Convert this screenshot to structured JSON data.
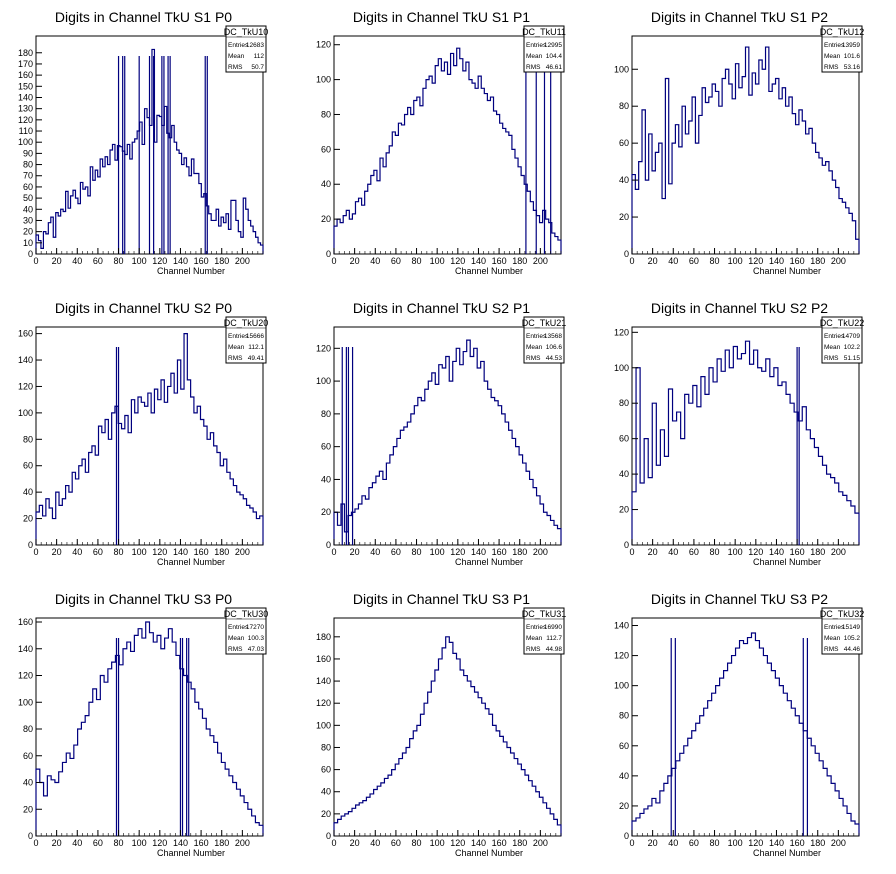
{
  "title": "Digits in Channel TkU S1 P0 ... S3 P2 (ROOT histogram canvas)",
  "style": {
    "line_color": "#00007f",
    "axis_color": "#000000",
    "background": "#ffffff"
  },
  "chart_data": [
    {
      "type": "histogram",
      "title": "Digits in Channel TkU S1 P0",
      "xlabel": "Channel Number",
      "ylabel": "",
      "xlim": [
        0,
        220
      ],
      "ylim": [
        0,
        195
      ],
      "xticks": [
        0,
        20,
        40,
        60,
        80,
        100,
        120,
        140,
        160,
        180,
        200
      ],
      "yticks": [
        0,
        10,
        20,
        30,
        40,
        50,
        60,
        70,
        80,
        90,
        100,
        110,
        120,
        130,
        140,
        150,
        160,
        170,
        180
      ],
      "stats": {
        "name": "DC_TkU10",
        "rows": [
          {
            "label": "Entries",
            "value": "12683"
          },
          {
            "label": "Mean",
            "value": "112"
          },
          {
            "label": "RMS",
            "value": "50.7"
          }
        ]
      },
      "bins_y": [
        17,
        12,
        5,
        20,
        18,
        28,
        33,
        15,
        37,
        34,
        40,
        38,
        56,
        41,
        52,
        57,
        50,
        45,
        64,
        58,
        60,
        52,
        78,
        66,
        75,
        69,
        85,
        78,
        87,
        80,
        93,
        98,
        84,
        97,
        96,
        92,
        89,
        98,
        85,
        100,
        103,
        110,
        118,
        98,
        130,
        122,
        115,
        183,
        100,
        124,
        123,
        115,
        132,
        108,
        104,
        115,
        100,
        93,
        90,
        80,
        86,
        78,
        70,
        85,
        72,
        72,
        63,
        51,
        54,
        43,
        36,
        30,
        30,
        40,
        25,
        33,
        28,
        36,
        22,
        48,
        48,
        30,
        20,
        15,
        50,
        40,
        30,
        25,
        20,
        15,
        10,
        8
      ],
      "gaps": [
        [
          80,
          84
        ],
        [
          86,
          100
        ],
        [
          110,
          114
        ],
        [
          122,
          124
        ],
        [
          128,
          130
        ],
        [
          164,
          166
        ]
      ]
    },
    {
      "type": "histogram",
      "title": "Digits in Channel TkU S1 P1",
      "xlabel": "Channel Number",
      "ylabel": "",
      "xlim": [
        0,
        220
      ],
      "ylim": [
        0,
        125
      ],
      "xticks": [
        0,
        20,
        40,
        60,
        80,
        100,
        120,
        140,
        160,
        180,
        200
      ],
      "yticks": [
        0,
        20,
        40,
        60,
        80,
        100,
        120
      ],
      "stats": {
        "name": "DC_TkU11",
        "rows": [
          {
            "label": "Entries",
            "value": "12995"
          },
          {
            "label": "Mean",
            "value": "104.4"
          },
          {
            "label": "RMS",
            "value": "46.61"
          }
        ]
      },
      "bins_y": [
        16,
        20,
        18,
        22,
        25,
        20,
        23,
        30,
        32,
        28,
        36,
        40,
        45,
        48,
        42,
        55,
        50,
        58,
        62,
        70,
        68,
        75,
        74,
        80,
        84,
        80,
        88,
        90,
        85,
        95,
        100,
        102,
        98,
        108,
        112,
        105,
        110,
        103,
        115,
        108,
        118,
        112,
        105,
        110,
        100,
        98,
        95,
        102,
        95,
        92,
        88,
        90,
        82,
        80,
        75,
        72,
        70,
        68,
        60,
        55,
        50,
        45,
        40,
        36,
        30,
        25,
        22,
        18,
        25,
        20,
        18,
        12,
        10,
        8
      ],
      "gaps": [
        [
          186,
          196
        ],
        [
          204,
          210
        ]
      ]
    },
    {
      "type": "histogram",
      "title": "Digits in Channel TkU S1 P2",
      "xlabel": "Channel Number",
      "ylabel": "",
      "xlim": [
        0,
        220
      ],
      "ylim": [
        0,
        118
      ],
      "xticks": [
        0,
        20,
        40,
        60,
        80,
        100,
        120,
        140,
        160,
        180,
        200
      ],
      "yticks": [
        0,
        20,
        40,
        60,
        80,
        100
      ],
      "stats": {
        "name": "DC_TkU12",
        "rows": [
          {
            "label": "Entries",
            "value": "13959"
          },
          {
            "label": "Mean",
            "value": "101.6"
          },
          {
            "label": "RMS",
            "value": "53.16"
          }
        ]
      },
      "bins_y": [
        43,
        35,
        50,
        78,
        40,
        65,
        45,
        55,
        60,
        30,
        95,
        38,
        60,
        70,
        58,
        80,
        65,
        72,
        85,
        60,
        75,
        90,
        82,
        85,
        92,
        88,
        80,
        95,
        100,
        92,
        84,
        103,
        90,
        96,
        112,
        86,
        98,
        92,
        105,
        100,
        112,
        88,
        92,
        95,
        84,
        90,
        80,
        85,
        76,
        70,
        78,
        72,
        65,
        68,
        60,
        55,
        52,
        48,
        50,
        45,
        40,
        36,
        30,
        28,
        25,
        22,
        18,
        8
      ],
      "gaps": []
    },
    {
      "type": "histogram",
      "title": "Digits in Channel TkU S2 P0",
      "xlabel": "Channel Number",
      "ylabel": "",
      "xlim": [
        0,
        220
      ],
      "ylim": [
        0,
        165
      ],
      "xticks": [
        0,
        20,
        40,
        60,
        80,
        100,
        120,
        140,
        160,
        180,
        200
      ],
      "yticks": [
        0,
        20,
        40,
        60,
        80,
        100,
        120,
        140,
        160
      ],
      "stats": {
        "name": "DC_TkU20",
        "rows": [
          {
            "label": "Entries",
            "value": "15666"
          },
          {
            "label": "Mean",
            "value": "112.1"
          },
          {
            "label": "RMS",
            "value": "49.41"
          }
        ]
      },
      "bins_y": [
        25,
        30,
        22,
        35,
        28,
        20,
        40,
        30,
        35,
        45,
        40,
        55,
        50,
        60,
        65,
        55,
        70,
        75,
        68,
        90,
        85,
        95,
        80,
        100,
        105,
        92,
        88,
        98,
        85,
        110,
        100,
        112,
        108,
        105,
        115,
        100,
        118,
        110,
        125,
        108,
        120,
        130,
        115,
        140,
        118,
        160,
        125,
        112,
        100,
        105,
        95,
        90,
        80,
        85,
        75,
        70,
        60,
        65,
        55,
        50,
        45,
        40,
        38,
        35,
        30,
        28,
        25,
        20,
        22
      ],
      "gaps": [
        [
          78,
          80
        ]
      ]
    },
    {
      "type": "histogram",
      "title": "Digits in Channel TkU S2 P1",
      "xlabel": "Channel Number",
      "ylabel": "",
      "xlim": [
        0,
        220
      ],
      "ylim": [
        0,
        133
      ],
      "xticks": [
        0,
        20,
        40,
        60,
        80,
        100,
        120,
        140,
        160,
        180,
        200
      ],
      "yticks": [
        0,
        20,
        40,
        60,
        80,
        100,
        120
      ],
      "stats": {
        "name": "DC_TkU21",
        "rows": [
          {
            "label": "Entries",
            "value": "13568"
          },
          {
            "label": "Mean",
            "value": "106.6"
          },
          {
            "label": "RMS",
            "value": "44.53"
          }
        ]
      },
      "bins_y": [
        20,
        12,
        25,
        8,
        18,
        20,
        22,
        25,
        30,
        28,
        35,
        38,
        42,
        45,
        40,
        50,
        55,
        60,
        65,
        70,
        72,
        75,
        80,
        85,
        90,
        88,
        95,
        100,
        105,
        98,
        110,
        108,
        115,
        100,
        112,
        120,
        110,
        118,
        125,
        115,
        120,
        108,
        112,
        100,
        95,
        90,
        88,
        85,
        80,
        75,
        70,
        65,
        60,
        55,
        50,
        45,
        40,
        35,
        30,
        25,
        20,
        18,
        15,
        12,
        10
      ],
      "gaps": [
        [
          8,
          12
        ],
        [
          14,
          18
        ]
      ]
    },
    {
      "type": "histogram",
      "title": "Digits in Channel TkU S2 P2",
      "xlabel": "Channel Number",
      "ylabel": "",
      "xlim": [
        0,
        220
      ],
      "ylim": [
        0,
        123
      ],
      "xticks": [
        0,
        20,
        40,
        60,
        80,
        100,
        120,
        140,
        160,
        180,
        200
      ],
      "yticks": [
        0,
        20,
        40,
        60,
        80,
        100,
        120
      ],
      "stats": {
        "name": "DC_TkU22",
        "rows": [
          {
            "label": "Entries",
            "value": "14709"
          },
          {
            "label": "Mean",
            "value": "102.2"
          },
          {
            "label": "RMS",
            "value": "51.15"
          }
        ]
      },
      "bins_y": [
        30,
        100,
        35,
        60,
        38,
        80,
        45,
        65,
        50,
        88,
        70,
        75,
        60,
        85,
        80,
        90,
        78,
        95,
        85,
        100,
        92,
        105,
        98,
        110,
        100,
        112,
        105,
        108,
        115,
        102,
        110,
        100,
        98,
        105,
        95,
        100,
        90,
        92,
        85,
        80,
        75,
        70,
        78,
        65,
        60,
        55,
        50,
        45,
        40,
        38,
        35,
        30,
        28,
        25,
        22,
        18
      ],
      "gaps": [
        [
          160,
          162
        ]
      ]
    },
    {
      "type": "histogram",
      "title": "Digits in Channel TkU S3 P0",
      "xlabel": "Channel Number",
      "ylabel": "",
      "xlim": [
        0,
        220
      ],
      "ylim": [
        0,
        163
      ],
      "xticks": [
        0,
        20,
        40,
        60,
        80,
        100,
        120,
        140,
        160,
        180,
        200
      ],
      "yticks": [
        0,
        20,
        40,
        60,
        80,
        100,
        120,
        140,
        160
      ],
      "stats": {
        "name": "DC_TkU30",
        "rows": [
          {
            "label": "Entries",
            "value": "17270"
          },
          {
            "label": "Mean",
            "value": "100.3"
          },
          {
            "label": "RMS",
            "value": "47.03"
          }
        ]
      },
      "bins_y": [
        50,
        40,
        30,
        45,
        42,
        40,
        48,
        55,
        62,
        58,
        68,
        80,
        85,
        90,
        100,
        110,
        102,
        120,
        115,
        125,
        130,
        135,
        128,
        140,
        145,
        138,
        150,
        155,
        148,
        160,
        152,
        145,
        150,
        140,
        148,
        155,
        145,
        135,
        125,
        120,
        115,
        110,
        100,
        95,
        88,
        80,
        75,
        70,
        62,
        55,
        50,
        45,
        40,
        35,
        30,
        25,
        20,
        15,
        10,
        8
      ],
      "gaps": [
        [
          78,
          80
        ],
        [
          140,
          142
        ],
        [
          146,
          148
        ]
      ]
    },
    {
      "type": "histogram",
      "title": "Digits in Channel TkU S3 P1",
      "xlabel": "Channel Number",
      "ylabel": "",
      "xlim": [
        0,
        220
      ],
      "ylim": [
        0,
        197
      ],
      "xticks": [
        0,
        20,
        40,
        60,
        80,
        100,
        120,
        140,
        160,
        180,
        200
      ],
      "yticks": [
        0,
        20,
        40,
        60,
        80,
        100,
        120,
        140,
        160,
        180
      ],
      "stats": {
        "name": "DC_TkU31",
        "rows": [
          {
            "label": "Entries",
            "value": "16990"
          },
          {
            "label": "Mean",
            "value": "112.7"
          },
          {
            "label": "RMS",
            "value": "44.98"
          }
        ]
      },
      "bins_y": [
        12,
        15,
        18,
        20,
        22,
        25,
        28,
        30,
        32,
        35,
        38,
        42,
        45,
        48,
        52,
        55,
        60,
        65,
        70,
        75,
        80,
        88,
        95,
        100,
        110,
        120,
        130,
        140,
        150,
        160,
        170,
        180,
        175,
        165,
        160,
        150,
        145,
        140,
        135,
        130,
        125,
        120,
        115,
        110,
        100,
        95,
        90,
        85,
        80,
        75,
        70,
        65,
        60,
        55,
        50,
        45,
        40,
        35,
        30,
        25,
        20,
        15,
        10
      ],
      "gaps": []
    },
    {
      "type": "histogram",
      "title": "Digits in Channel TkU S3 P2",
      "xlabel": "Channel Number",
      "ylabel": "",
      "xlim": [
        0,
        220
      ],
      "ylim": [
        0,
        145
      ],
      "xticks": [
        0,
        20,
        40,
        60,
        80,
        100,
        120,
        140,
        160,
        180,
        200
      ],
      "yticks": [
        0,
        20,
        40,
        60,
        80,
        100,
        120,
        140
      ],
      "stats": {
        "name": "DC_TkU32",
        "rows": [
          {
            "label": "Entries",
            "value": "15149"
          },
          {
            "label": "Mean",
            "value": "105.2"
          },
          {
            "label": "RMS",
            "value": "44.46"
          }
        ]
      },
      "bins_y": [
        10,
        12,
        15,
        18,
        20,
        25,
        22,
        30,
        35,
        40,
        45,
        50,
        55,
        60,
        65,
        70,
        75,
        80,
        85,
        90,
        95,
        100,
        105,
        110,
        115,
        120,
        125,
        130,
        128,
        132,
        135,
        130,
        125,
        120,
        115,
        110,
        105,
        100,
        95,
        90,
        85,
        80,
        75,
        70,
        65,
        60,
        55,
        50,
        45,
        40,
        35,
        30,
        25,
        20,
        15,
        10,
        8
      ],
      "gaps": [
        [
          38,
          42
        ],
        [
          166,
          170
        ]
      ]
    }
  ]
}
